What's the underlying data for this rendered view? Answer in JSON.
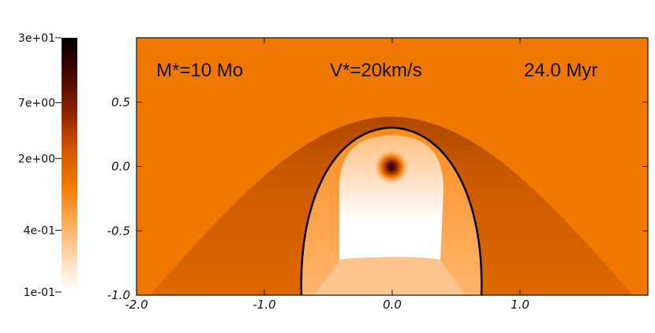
{
  "chart_data": {
    "type": "heatmap",
    "annotations": [
      "M*=10 Mo",
      "V*=20km/s",
      "24.0 Myr"
    ],
    "x": {
      "ticks": [
        "-2.0",
        "-1.0",
        "0.0",
        "1.0"
      ],
      "tick_values": [
        -2.0,
        -1.0,
        0.0,
        1.0
      ],
      "range": [
        -2.0,
        2.0
      ]
    },
    "y": {
      "ticks": [
        "0.5",
        "0.0",
        "-0.5",
        "-1.0"
      ],
      "tick_values": [
        0.5,
        0.0,
        -0.5,
        -1.0
      ],
      "range": [
        -1.0,
        1.0
      ]
    },
    "colorbar": {
      "ticks": [
        "3e+01",
        "7e+00",
        "2e+00",
        "4e-01",
        "1e-01"
      ],
      "tick_values": [
        30,
        7,
        2,
        0.4,
        0.1
      ],
      "scale": "log",
      "colormap": [
        "#000000",
        "#5a0800",
        "#b53a00",
        "#f07800",
        "#ff9f45",
        "#ffd6b0",
        "#ffffff"
      ]
    },
    "features": {
      "outer_bow_shock": {
        "apex_y": 0.37,
        "width_at_bottom": 3.6
      },
      "contact_discontinuity": {
        "apex_y": 0.3,
        "half_width_at_bottom": 0.72,
        "stroke": "#000000"
      },
      "star": {
        "x": 0.0,
        "y": 0.0
      },
      "free_wind_cavity": {
        "half_width": 0.43,
        "bottom_y": -0.75
      }
    },
    "colors": {
      "background": "#f07800",
      "shocked_ism": "#d05c00",
      "shocked_wind": "#ff9a38",
      "cavity": "#ffffff"
    }
  }
}
